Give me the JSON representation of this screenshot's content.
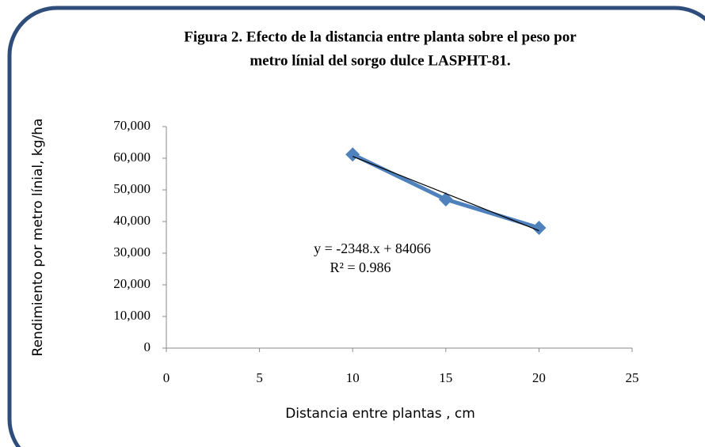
{
  "chart_data": {
    "type": "line",
    "title": "Figura 2.  Efecto de la distancia entre planta sobre el peso  por",
    "subtitle": "metro línial del sorgo dulce LASPHT-81.",
    "x_label": "Distancia entre plantas , cm",
    "y_label": "Rendimiento por metro línial, kg/ha",
    "annotations": [
      "y = -2348.x + 84066",
      "R² = 0.986"
    ],
    "x": [
      10,
      15,
      20
    ],
    "series": [
      {
        "color": "#4f81bd",
        "values": [
          61200,
          47000,
          38000
        ]
      }
    ],
    "trendline": {
      "color": "#000000",
      "x": [
        10,
        20
      ],
      "values": [
        60586,
        37106
      ]
    },
    "xlim": [
      0,
      25
    ],
    "xticks": [
      0,
      5,
      10,
      15,
      20,
      25
    ],
    "ylim": [
      0,
      70000
    ],
    "yticks": [
      0,
      {
        "value": 10000,
        "label": "10,000"
      },
      {
        "value": 20000,
        "label": "20,000"
      },
      {
        "value": 30000,
        "label": "30,000"
      },
      {
        "value": 40000,
        "label": "40,000"
      },
      {
        "value": 50000,
        "label": "50,000"
      },
      {
        "value": 60000,
        "label": "60,000"
      },
      {
        "value": 70000,
        "label": "70,000"
      }
    ],
    "grid": false
  }
}
